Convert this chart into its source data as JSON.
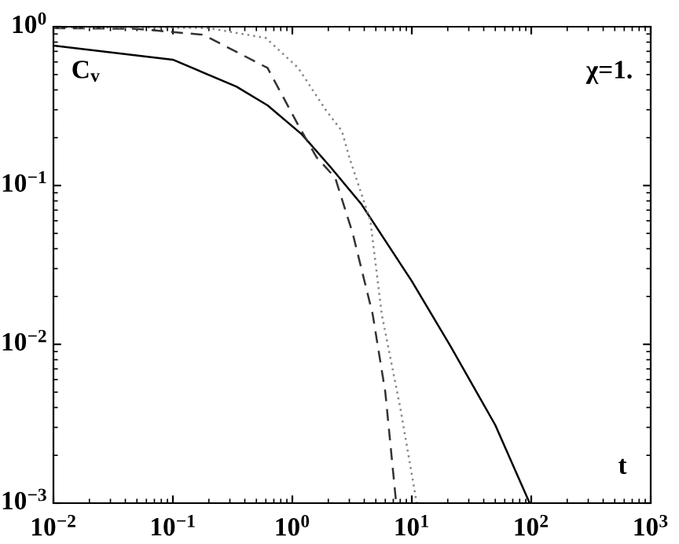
{
  "chart_data": {
    "type": "line",
    "log": "xy",
    "xlim": [
      0.01,
      1000
    ],
    "ylim": [
      0.001,
      1
    ],
    "xticks": [
      {
        "value": 0.01,
        "label": "10$^{−2}$"
      },
      {
        "value": 0.1,
        "label": "10$^{−1}$"
      },
      {
        "value": 1,
        "label": "10$^{0}$"
      },
      {
        "value": 10,
        "label": "10$^{1}$"
      },
      {
        "value": 100,
        "label": "10$^{2}$"
      },
      {
        "value": 1000,
        "label": "10$^{3}$"
      }
    ],
    "yticks": [
      {
        "value": 0.001,
        "label": "10$^{−3}$"
      },
      {
        "value": 0.01,
        "label": "10$^{−2}$"
      },
      {
        "value": 0.1,
        "label": "10$^{−1}$"
      },
      {
        "value": 1,
        "label": "10$^{0}$"
      }
    ],
    "grid": false,
    "legend": false,
    "marker": "none",
    "annotations": [
      "C$_{v}$",
      "χ=1.",
      "t"
    ],
    "series": [
      {
        "color": "#000000",
        "line_style": "solid",
        "x": [
          0.01,
          0.1,
          0.34,
          0.62,
          1.2,
          2.1,
          3.8,
          10,
          21,
          50,
          97
        ],
        "values": [
          0.76,
          0.62,
          0.42,
          0.32,
          0.21,
          0.13,
          0.076,
          0.025,
          0.0098,
          0.0031,
          0.001
        ]
      },
      {
        "color": "#333333",
        "line_style": "dashed",
        "x": [
          0.01,
          0.05,
          0.18,
          0.62,
          1.12,
          1.6,
          2.1,
          2.3,
          3.2,
          4.7,
          6.0,
          7.4
        ],
        "values": [
          0.98,
          0.97,
          0.89,
          0.55,
          0.24,
          0.15,
          0.12,
          0.11,
          0.05,
          0.0155,
          0.005,
          0.001
        ]
      },
      {
        "color": "#888888",
        "line_style": "dotted",
        "x": [
          0.01,
          0.05,
          0.2,
          0.6,
          1.12,
          1.9,
          2.6,
          3.0,
          4.5,
          5.6,
          8.0,
          11
        ],
        "values": [
          0.99,
          0.99,
          0.98,
          0.85,
          0.55,
          0.3,
          0.22,
          0.15,
          0.06,
          0.0155,
          0.004,
          0.001
        ]
      }
    ]
  }
}
